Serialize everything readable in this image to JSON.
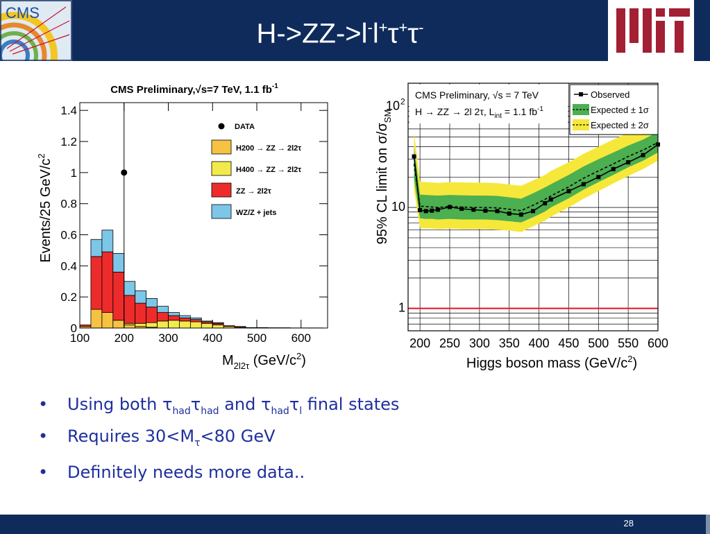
{
  "slide": {
    "title_parts": [
      "H->ZZ->l",
      "-",
      "l",
      "+",
      "τ",
      "+",
      "τ",
      "-"
    ],
    "page_number": "28"
  },
  "logos": {
    "cms_text": "CMS",
    "mit_text": "MIT",
    "mit_color": "#a31f34"
  },
  "bullets": {
    "b1": {
      "a": "Using both ",
      "t1": "τ",
      "s1": "had",
      "t2": "τ",
      "s2": "had",
      "b": " and ",
      "t3": "τ",
      "s3": "had",
      "t4": "τ",
      "s4": "l",
      "c": " final states"
    },
    "b2": {
      "a": "Requires 30<M",
      "s1": "τ",
      "b": "<80 GeV"
    },
    "b3": {
      "a": "Definitely needs more data.."
    }
  },
  "colors": {
    "header_bg": "#0e2b5c",
    "bullet_text": "#1f2f9e",
    "hist_h200": "#f5c242",
    "hist_h400": "#f2ea4a",
    "hist_zz": "#ee2b2b",
    "hist_wz": "#7cc6e8",
    "band_1sigma": "#4caf50",
    "band_2sigma": "#f5e83a",
    "sm_line": "#e0202e"
  },
  "chart_data": [
    {
      "type": "bar",
      "title": "CMS Preliminary,√s=7 TeV, 1.1 fb",
      "title_sup": "-1",
      "ylabel": "Events/25 GeV/c",
      "ylabel_sup": "2",
      "xlabel": "M",
      "xlabel_sub": "2l2τ",
      "xlabel_unit": "(GeV/c",
      "xlabel_sup": "2",
      "xlabel_end": ")",
      "xlim": [
        100,
        660
      ],
      "ylim": [
        0,
        1.45
      ],
      "x_ticks": [
        "100",
        "200",
        "300",
        "400",
        "500",
        "600"
      ],
      "y_ticks": [
        "0",
        "0.2",
        "0.4",
        "0.6",
        "0.8",
        "1",
        "1.2",
        "1.4"
      ],
      "bin_edges": [
        100,
        125,
        150,
        175,
        200,
        225,
        250,
        275,
        300,
        325,
        350,
        375,
        400,
        425,
        450,
        475,
        500,
        525,
        550,
        575,
        600,
        625,
        650
      ],
      "series": [
        {
          "name": "H200 → ZZ → 2l2τ",
          "key": "h200",
          "values": [
            0.01,
            0.12,
            0.1,
            0.05,
            0.02,
            0.01,
            0.005,
            0.0,
            0.0,
            0.0,
            0.0,
            0.0,
            0.0,
            0.0,
            0.0,
            0.0,
            0.0,
            0.0,
            0.0,
            0.0,
            0.0,
            0.0
          ]
        },
        {
          "name": "H400 → ZZ →  2l2τ",
          "key": "h400",
          "values": [
            0.0,
            0.0,
            0.0,
            0.0,
            0.01,
            0.02,
            0.03,
            0.045,
            0.05,
            0.045,
            0.04,
            0.03,
            0.02,
            0.01,
            0.005,
            0.0,
            0.0,
            0.0,
            0.0,
            0.0,
            0.0,
            0.0
          ]
        },
        {
          "name": "ZZ → 2l2τ",
          "key": "zz",
          "values": [
            0.01,
            0.34,
            0.39,
            0.31,
            0.18,
            0.13,
            0.1,
            0.055,
            0.03,
            0.02,
            0.015,
            0.01,
            0.01,
            0.005,
            0.005,
            0.003,
            0.003,
            0.002,
            0.002,
            0.001,
            0.001,
            0.001
          ]
        },
        {
          "name": "WZ/Z + jets",
          "key": "wz",
          "values": [
            0.0,
            0.11,
            0.14,
            0.12,
            0.09,
            0.08,
            0.055,
            0.04,
            0.02,
            0.015,
            0.01,
            0.005,
            0.005,
            0.0,
            0.0,
            0.0,
            0.0,
            0.0,
            0.0,
            0.0,
            0.0,
            0.0
          ]
        }
      ],
      "data_points": [
        {
          "name": "DATA",
          "x": 200,
          "y": 1.0
        }
      ],
      "legend_data_label": "DATA",
      "legend_position": "top-right"
    },
    {
      "type": "line",
      "title_line1": "CMS Preliminary, √s = 7 TeV",
      "title_line2": "H → ZZ → 2l 2τ, L",
      "title_line2_sub": "int",
      "title_line2_end": " = 1.1 fb",
      "title_line2_sup": "-1",
      "ylabel": "95% CL limit on σ/σ",
      "ylabel_sub": "SM",
      "xlabel": "Higgs boson mass (GeV/c",
      "xlabel_sup": "2",
      "xlabel_end": ")",
      "xlim": [
        180,
        600
      ],
      "ylim": [
        0.6,
        170
      ],
      "yscale": "log",
      "x_ticks": [
        "200",
        "250",
        "300",
        "350",
        "400",
        "450",
        "500",
        "550",
        "600"
      ],
      "y_ticks": [
        "1",
        "10",
        "10"
      ],
      "y_tick_sup": "2",
      "legend": [
        "Observed",
        "Expected ± 1σ",
        "Expected ± 2σ"
      ],
      "legend_position": "top-right",
      "grid": true,
      "x": [
        190,
        200,
        210,
        220,
        230,
        250,
        270,
        290,
        310,
        330,
        350,
        370,
        390,
        410,
        420,
        450,
        475,
        500,
        525,
        550,
        575,
        600
      ],
      "observed": [
        32,
        9.4,
        9.2,
        9.3,
        9.5,
        10.1,
        9.7,
        9.5,
        9.3,
        9.2,
        8.7,
        8.5,
        9.2,
        11,
        12,
        14.5,
        17,
        20,
        24,
        28,
        33,
        42
      ],
      "expected": [
        27,
        10.3,
        10.2,
        10.1,
        10.0,
        10.2,
        10.1,
        10.0,
        10.0,
        9.9,
        9.6,
        9.3,
        10.5,
        12,
        13,
        16,
        19.5,
        23,
        27,
        32,
        37,
        44
      ],
      "band_1sigma_low": [
        19,
        7.8,
        7.7,
        7.7,
        7.6,
        7.7,
        7.6,
        7.6,
        7.6,
        7.5,
        7.3,
        7.1,
        8.0,
        9.1,
        10,
        12.3,
        15,
        17.8,
        21,
        25,
        29,
        35
      ],
      "band_1sigma_high": [
        40,
        13.4,
        13.3,
        13.2,
        13.1,
        13.3,
        13.2,
        13.1,
        13.1,
        13.0,
        12.6,
        12.2,
        13.8,
        15.8,
        17,
        21,
        25.5,
        30,
        35,
        41,
        47,
        56
      ],
      "band_2sigma_low": [
        15,
        6.3,
        6.2,
        6.2,
        6.1,
        6.2,
        6.1,
        6.1,
        6.1,
        6.0,
        5.9,
        5.7,
        6.5,
        7.4,
        8.1,
        10,
        12.2,
        14.5,
        17.3,
        20.5,
        24,
        29
      ],
      "band_2sigma_high": [
        55,
        18,
        17.8,
        17.7,
        17.5,
        17.8,
        17.7,
        17.6,
        17.6,
        17.4,
        16.9,
        16.4,
        18.5,
        21,
        23,
        28,
        34,
        40,
        47,
        55,
        63,
        75
      ],
      "sm_line": 1
    }
  ]
}
